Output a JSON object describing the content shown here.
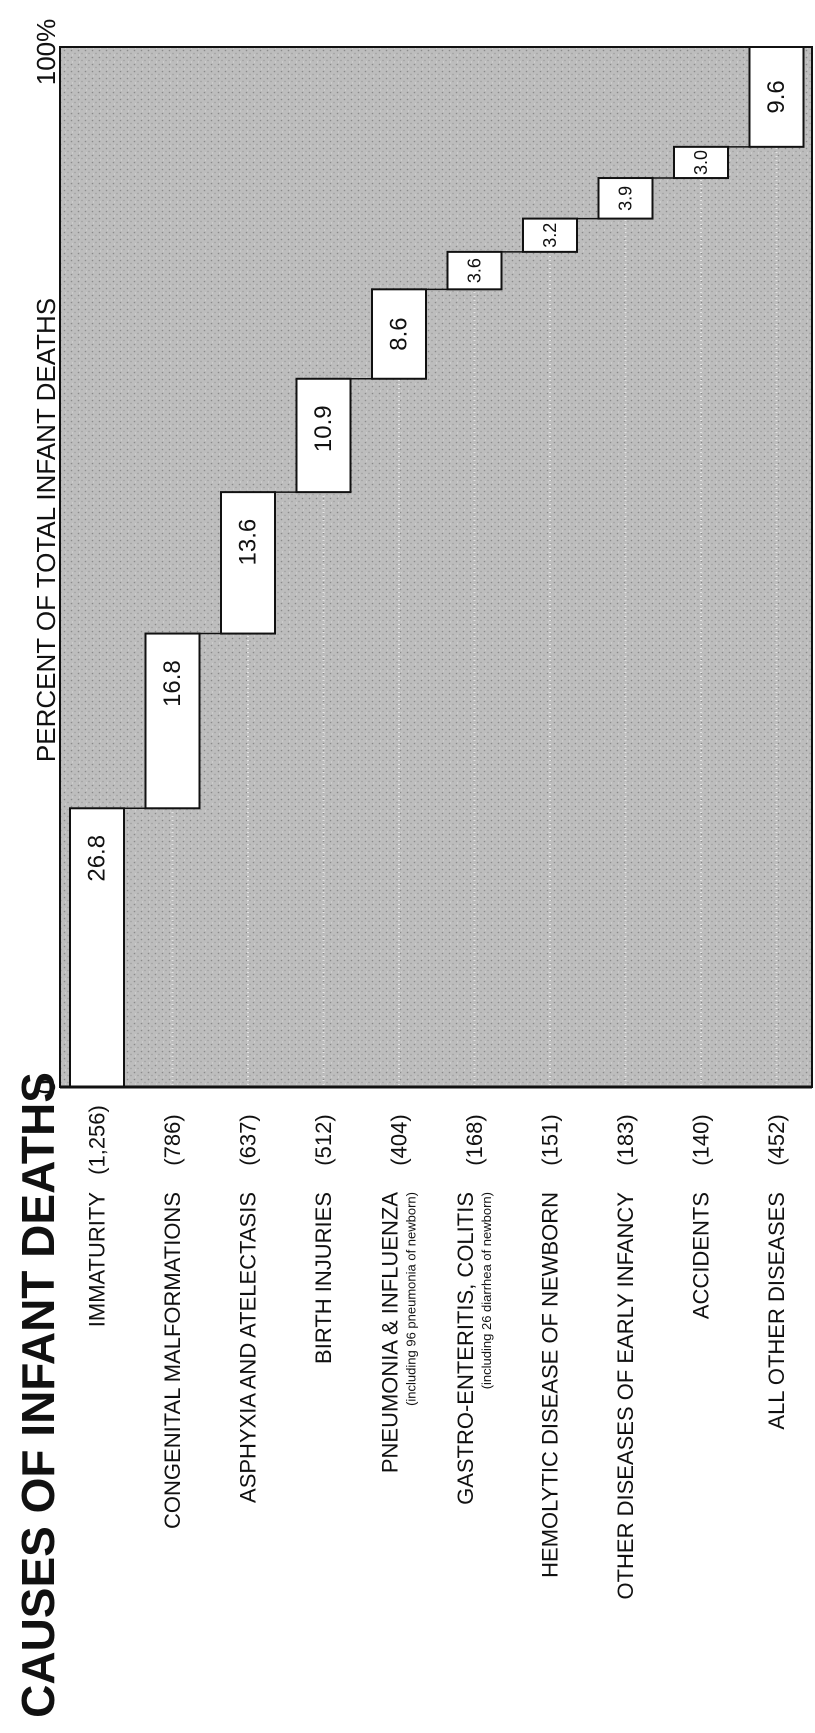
{
  "title": "CAUSES OF INFANT DEATHS",
  "colors": {
    "ink": "#111111",
    "panel": "#b9b9b9",
    "bar_fill": "#ffffff"
  },
  "chart_data": {
    "type": "bar",
    "variant": "cumulative-waterfall",
    "orientation": "rotated 90 degrees counter-clockwise",
    "title": "CAUSES OF INFANT DEATHS",
    "value_axis": {
      "label": "PERCENT OF TOTAL INFANT DEATHS",
      "min_label": "0",
      "max_label": "100%",
      "range": [
        0,
        100
      ]
    },
    "grid": false,
    "categories": [
      {
        "name": "IMMATURITY",
        "count": "(1,256)",
        "note": "",
        "value": 26.8,
        "value_label": "26.8"
      },
      {
        "name": "CONGENITAL MALFORMATIONS",
        "count": "(786)",
        "note": "",
        "value": 16.8,
        "value_label": "16.8"
      },
      {
        "name": "ASPHYXIA AND ATELECTASIS",
        "count": "(637)",
        "note": "",
        "value": 13.6,
        "value_label": "13.6"
      },
      {
        "name": "BIRTH INJURIES",
        "count": "(512)",
        "note": "",
        "value": 10.9,
        "value_label": "10.9"
      },
      {
        "name": "PNEUMONIA & INFLUENZA",
        "count": "(404)",
        "note": "(including 96 pneumonia of newborn)",
        "value": 8.6,
        "value_label": "8.6"
      },
      {
        "name": "GASTRO-ENTERITIS, COLITIS",
        "count": "(168)",
        "note": "(including 26 diarrhea of newborn)",
        "value": 3.6,
        "value_label": "3.6"
      },
      {
        "name": "HEMOLYTIC DISEASE OF NEWBORN",
        "count": "(151)",
        "note": "",
        "value": 3.2,
        "value_label": "3.2"
      },
      {
        "name": "OTHER DISEASES OF EARLY INFANCY",
        "count": "(183)",
        "note": "",
        "value": 3.9,
        "value_label": "3.9"
      },
      {
        "name": "ACCIDENTS",
        "count": "(140)",
        "note": "",
        "value": 3.0,
        "value_label": "3.0"
      },
      {
        "name": "ALL OTHER DISEASES",
        "count": "(452)",
        "note": "",
        "value": 9.6,
        "value_label": "9.6"
      }
    ]
  }
}
